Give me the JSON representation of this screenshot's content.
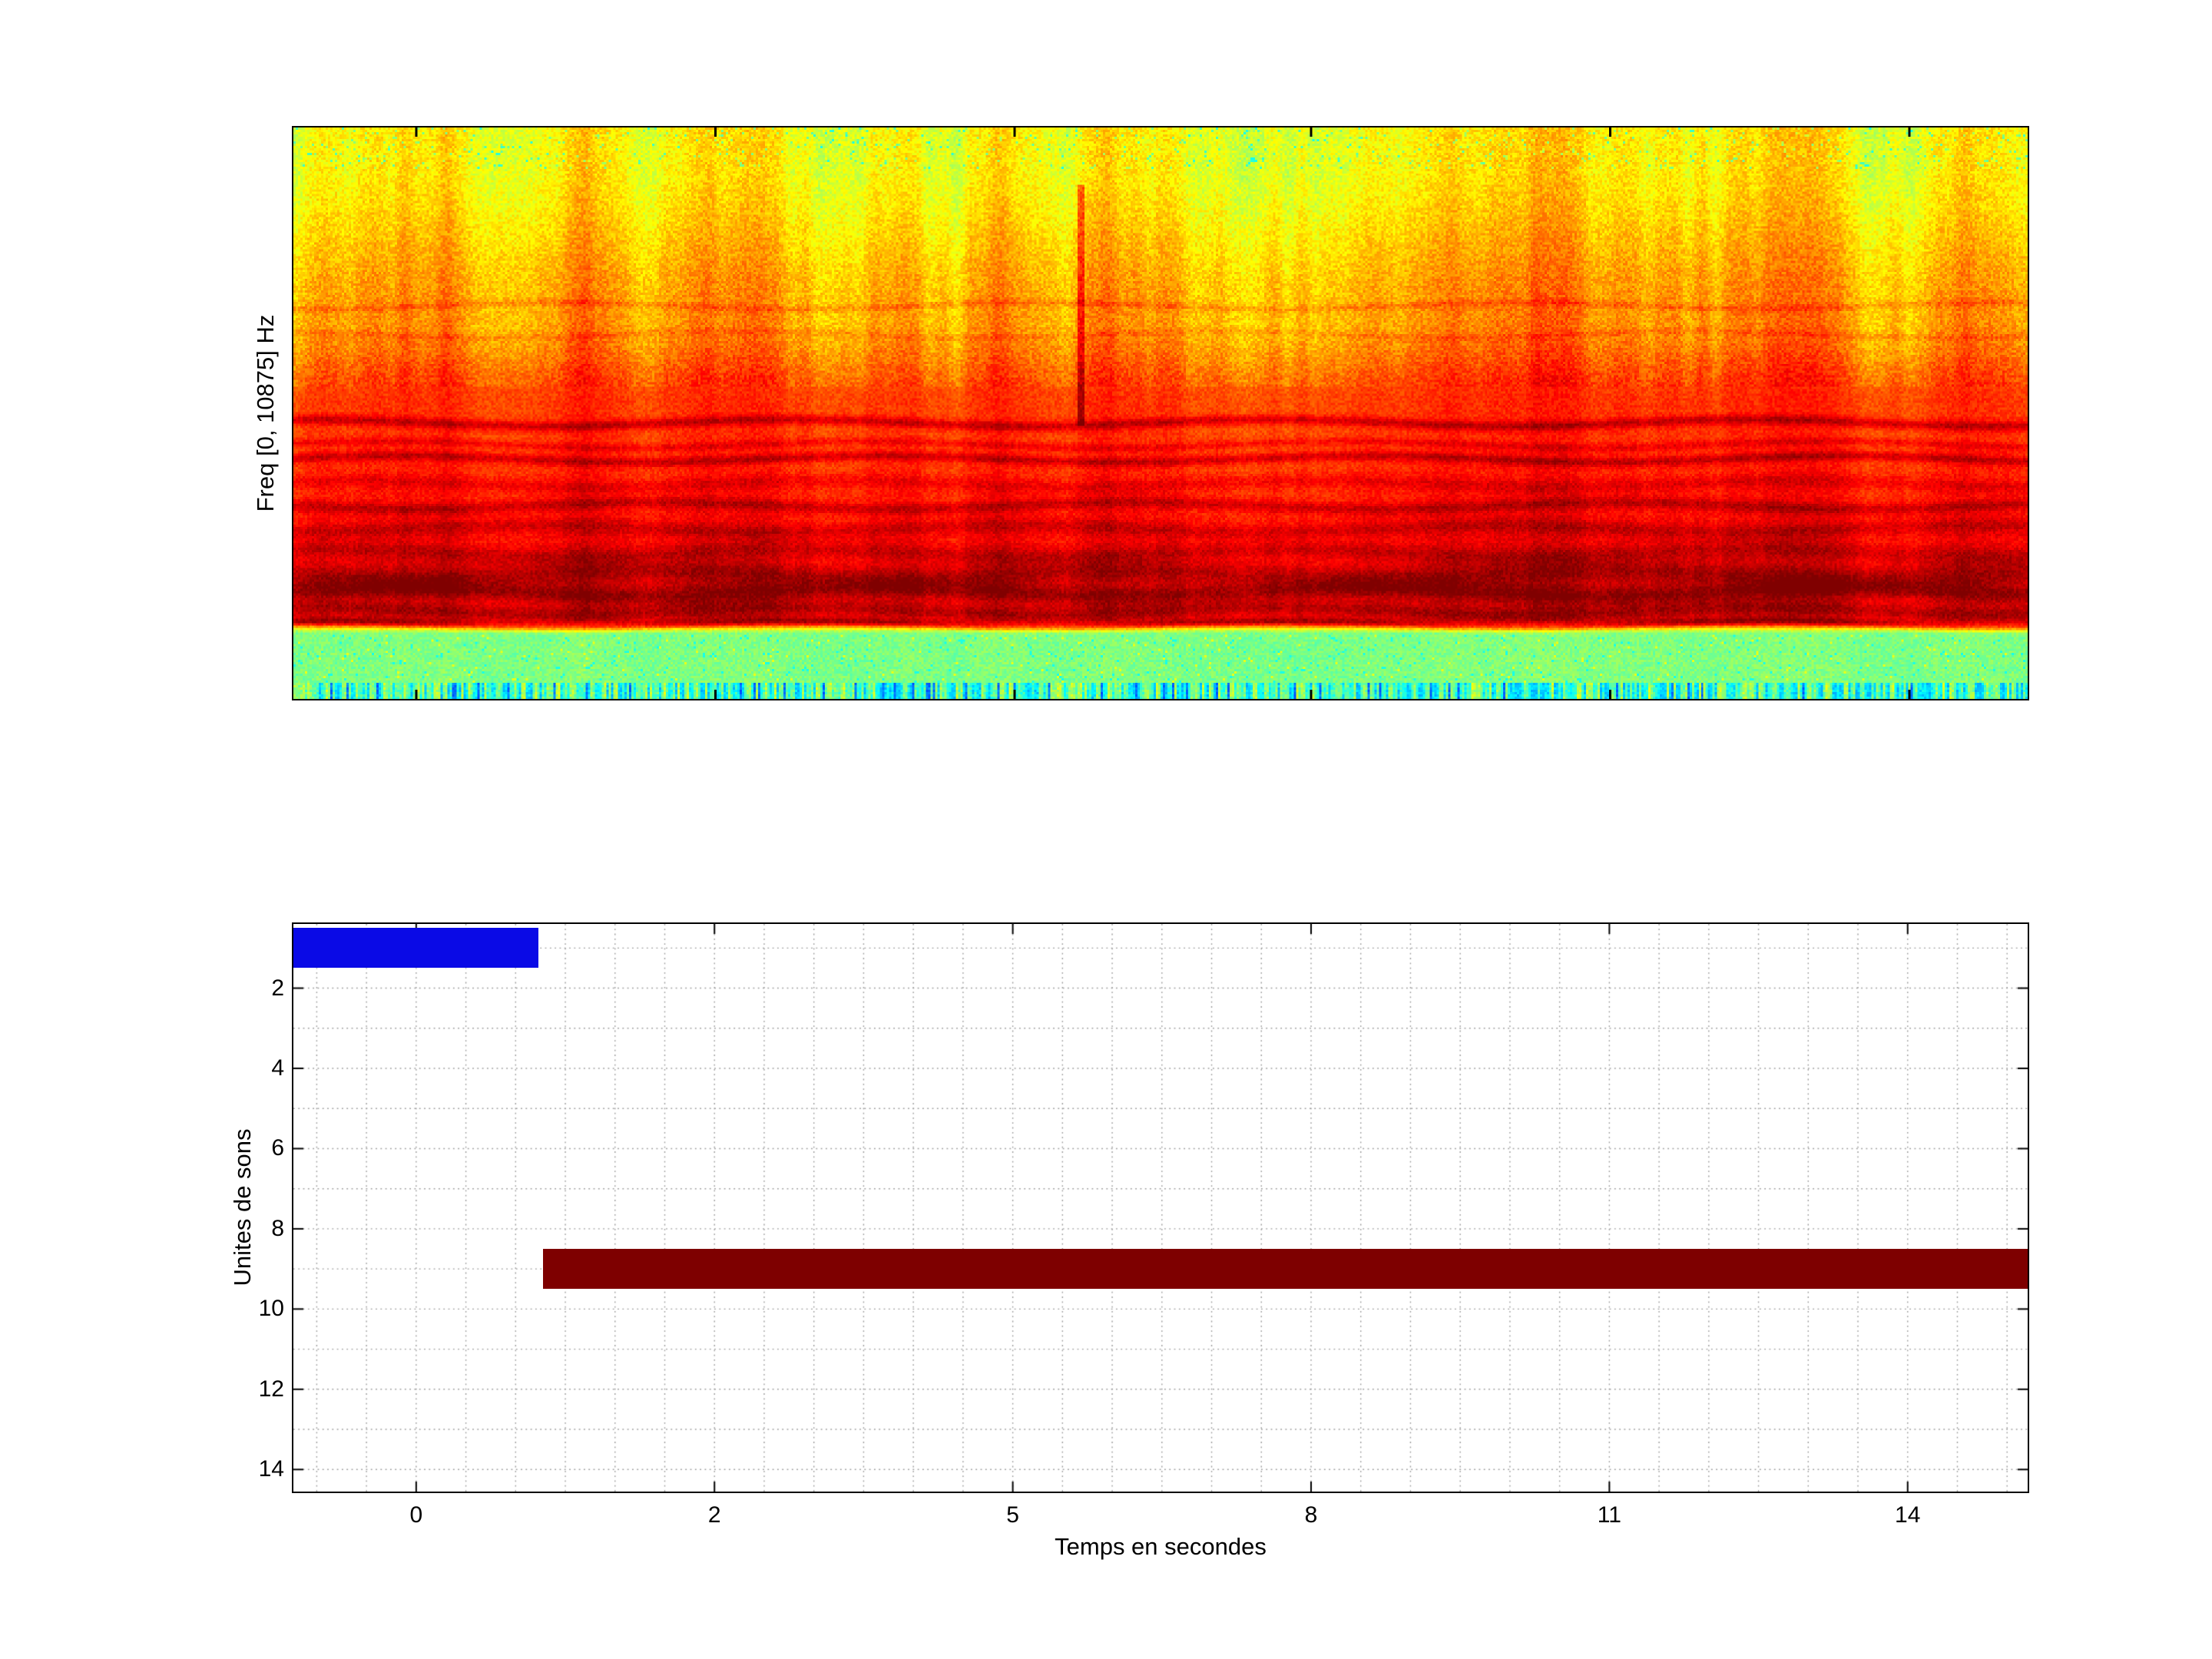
{
  "spectrogram": {
    "ylabel": "Freq [0, 10875] Hz"
  },
  "units_plot": {
    "ylabel": "Unites de sons",
    "xlabel": "Temps en secondes"
  },
  "chart_data": [
    {
      "type": "heatmap",
      "subplot": "top-spectrogram",
      "title": "",
      "xlabel": "",
      "ylabel": "Freq [0, 10875] Hz",
      "freq_range_hz": [
        0,
        10875
      ],
      "colormap": "jet",
      "grid": false,
      "structure_top_to_bottom": [
        {
          "freq_frac": [
            0.0,
            0.33
          ],
          "power": "high",
          "appearance": "yellow with orange vertical streaks and sparse green flecks"
        },
        {
          "freq_frac": [
            0.33,
            0.88
          ],
          "power": "very high",
          "appearance": "red to dark red with several dark horizontal harmonic bands"
        },
        {
          "freq_frac": [
            0.88,
            0.97
          ],
          "power": "low",
          "appearance": "light green speckle"
        },
        {
          "freq_frac": [
            0.97,
            1.0
          ],
          "power": "lowest",
          "appearance": "green-cyan-blue vertical speckle fringe"
        }
      ]
    },
    {
      "type": "bar",
      "subplot": "bottom-units",
      "orientation": "horizontal",
      "title": "",
      "xlabel": "Temps en secondes",
      "ylabel": "Unites de sons",
      "xtick_values": [
        0,
        2,
        5,
        8,
        11,
        14
      ],
      "ytick_values": [
        2,
        4,
        6,
        8,
        10,
        12,
        14
      ],
      "ylim": [
        0.4,
        14.55
      ],
      "grid": "dotted",
      "grid_color": "#9a9a9a",
      "segments": [
        {
          "unit": 1,
          "start_s": -1.2,
          "end_s": 0.82,
          "color": "#0a0ae6"
        },
        {
          "unit": 9,
          "start_s": 0.85,
          "end_s": 15.6,
          "color": "#7e0000"
        }
      ]
    }
  ]
}
